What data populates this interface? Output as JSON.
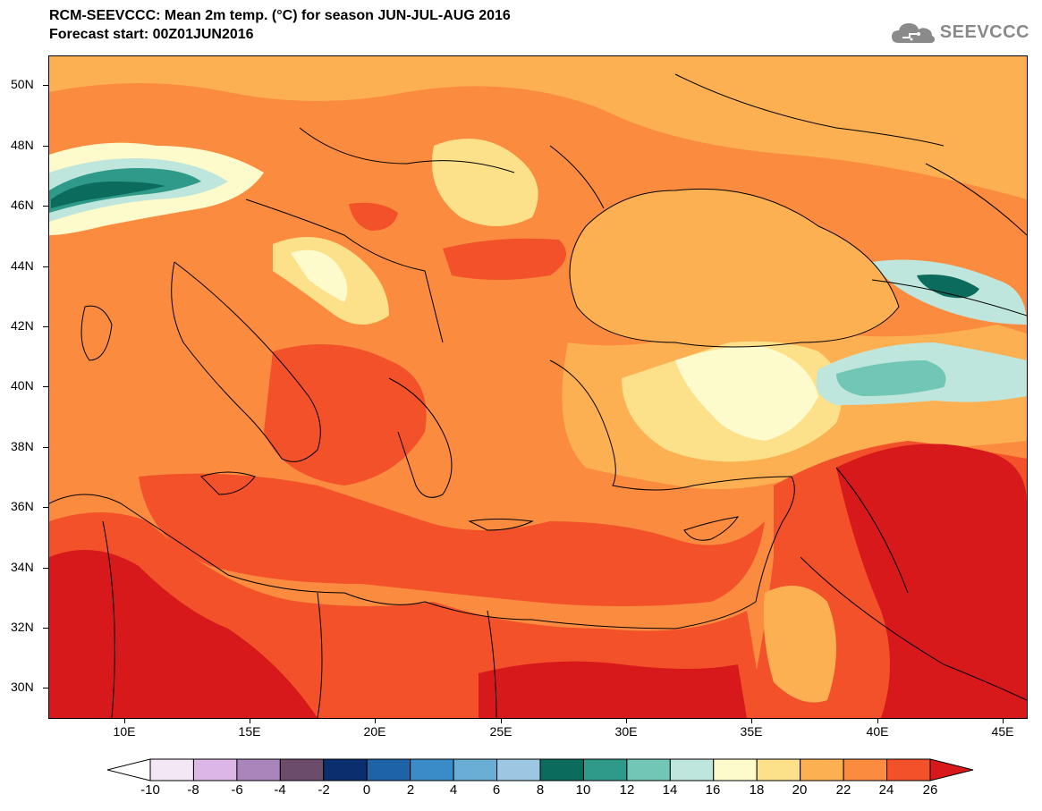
{
  "header": {
    "title": "RCM-SEEVCCC: Mean 2m temp. (°C) for season JUN-JUL-AUG 2016",
    "subtitle": "Forecast start: 00Z01JUN2016"
  },
  "logo": {
    "text": "SEEVCCC",
    "icon": "cloud-icon"
  },
  "map": {
    "lat_labels": [
      "50N",
      "48N",
      "46N",
      "44N",
      "42N",
      "40N",
      "38N",
      "36N",
      "34N",
      "32N",
      "30N"
    ],
    "lon_labels": [
      "10E",
      "15E",
      "20E",
      "25E",
      "30E",
      "35E",
      "40E",
      "45E"
    ],
    "lat_range": [
      29,
      51
    ],
    "lon_range": [
      7,
      46
    ]
  },
  "colorbar": {
    "labels": [
      "-10",
      "-8",
      "-6",
      "-4",
      "-2",
      "0",
      "2",
      "4",
      "6",
      "8",
      "10",
      "12",
      "14",
      "16",
      "18",
      "20",
      "22",
      "24",
      "26"
    ],
    "low_color": "#ffffff",
    "high_color": "#d7191c",
    "colors": [
      "#f3e6f5",
      "#dcb6e6",
      "#a985bb",
      "#6b4d6b",
      "#0b2e6e",
      "#1e62a8",
      "#3a8cc8",
      "#6aaed6",
      "#9cc6e2",
      "#0b6b5c",
      "#2f9a8a",
      "#72c6b6",
      "#bfe6dc",
      "#fdfacb",
      "#fde08a",
      "#fcb052",
      "#fb8b3f",
      "#f2512a"
    ]
  },
  "legend_colors": {
    "sea_warm": "#fb8b3f",
    "hot": "#f2512a",
    "hottest": "#d7191c",
    "mild": "#fcb052",
    "cool": "#fde08a",
    "cold": "#fdfacb",
    "mountain": "#bfe6dc",
    "alpine": "#72c6b6",
    "peak": "#2f9a8a",
    "summit": "#0b6b5c"
  }
}
